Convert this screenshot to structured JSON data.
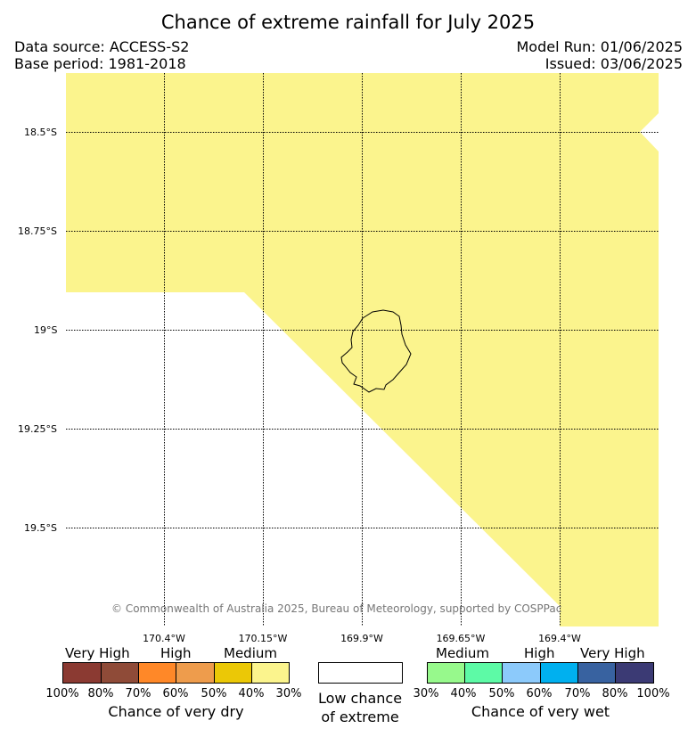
{
  "title": "Chance of extreme rainfall for July 2025",
  "meta": {
    "source": "Data source: ACCESS-S2",
    "base": "Base period: 1981-2018",
    "model_run": "Model Run: 01/06/2025",
    "issued": "Issued: 03/06/2025"
  },
  "map": {
    "lat_labels": [
      "18.5°S",
      "18.75°S",
      "19°S",
      "19.25°S",
      "19.5°S"
    ],
    "lon_labels": [
      "170.4°W",
      "170.15°W",
      "169.9°W",
      "169.65°W",
      "169.4°W"
    ],
    "fill_color": "#fbf48d",
    "credit": "© Commonwealth of Australia 2025, Bureau of Meteorology, supported by COSPPac"
  },
  "legend": {
    "dry": {
      "levels": [
        "Very High",
        "High",
        "Medium"
      ],
      "colors": [
        "#8b3a32",
        "#8f4b38",
        "#ff8828",
        "#ee9c4c",
        "#ebc806",
        "#fbf48d"
      ],
      "ticks": [
        "100%",
        "80%",
        "70%",
        "60%",
        "50%",
        "40%",
        "30%"
      ],
      "caption": "Chance of very dry"
    },
    "neutral": {
      "color": "#ffffff",
      "caption_line1": "Low chance",
      "caption_line2": "of extreme"
    },
    "wet": {
      "levels": [
        "Medium",
        "High",
        "Very High"
      ],
      "colors": [
        "#97f98c",
        "#5dfaa6",
        "#8ccafb",
        "#00b0ef",
        "#3862a0",
        "#3b3a74"
      ],
      "ticks": [
        "30%",
        "40%",
        "50%",
        "60%",
        "70%",
        "80%",
        "100%"
      ],
      "caption": "Chance of very wet"
    }
  }
}
